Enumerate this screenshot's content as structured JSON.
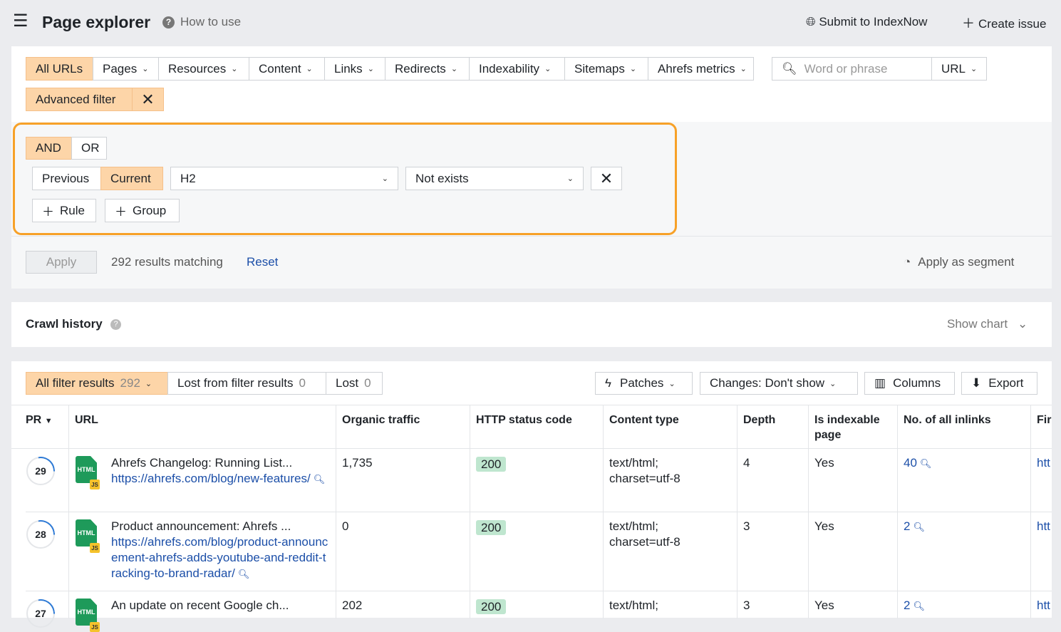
{
  "header": {
    "title": "Page explorer",
    "how_to_use": "How to use",
    "submit": "Submit to IndexNow",
    "create_issue": "Create issue"
  },
  "tabs": [
    {
      "label": "All URLs"
    },
    {
      "label": "Pages"
    },
    {
      "label": "Resources"
    },
    {
      "label": "Content"
    },
    {
      "label": "Links"
    },
    {
      "label": "Redirects"
    },
    {
      "label": "Indexability"
    },
    {
      "label": "Sitemaps"
    },
    {
      "label": "Ahrefs metrics"
    }
  ],
  "search": {
    "placeholder": "Word or phrase",
    "mode": "URL"
  },
  "advanced_filter": "Advanced filter",
  "filter": {
    "and": "AND",
    "or": "OR",
    "previous": "Previous",
    "current": "Current",
    "field": "H2",
    "condition": "Not exists",
    "rule": "Rule",
    "group": "Group"
  },
  "apply": {
    "label": "Apply",
    "results": "292 results matching",
    "reset": "Reset",
    "segment": "Apply as segment"
  },
  "crawl_history": {
    "title": "Crawl history",
    "show_chart": "Show chart"
  },
  "results_tabs": [
    {
      "label": "All filter results",
      "count": "292"
    },
    {
      "label": "Lost from filter results",
      "count": "0"
    },
    {
      "label": "Lost",
      "count": "0"
    }
  ],
  "toolbar": {
    "patches": "Patches",
    "changes": "Changes: Don't show",
    "columns": "Columns",
    "export": "Export"
  },
  "columns": [
    "PR",
    "URL",
    "Organic traffic",
    "HTTP status code",
    "Content type",
    "Depth",
    "Is indexable page",
    "No. of all inlinks",
    "Fir"
  ],
  "rows": [
    {
      "pr": "29",
      "title": "Ahrefs Changelog: Running List...",
      "url": "https://ahrefs.com/blog/new-features/",
      "traffic": "1,735",
      "status": "200",
      "ctype": "text/html; charset=utf-8",
      "depth": "4",
      "indexable": "Yes",
      "inlinks": "40",
      "first": "htt"
    },
    {
      "pr": "28",
      "title": "Product announcement: Ahrefs ...",
      "url": "https://ahrefs.com/blog/product-announcement-ahrefs-adds-youtube-and-reddit-tracking-to-brand-radar/",
      "traffic": "0",
      "status": "200",
      "ctype": "text/html; charset=utf-8",
      "depth": "3",
      "indexable": "Yes",
      "inlinks": "2",
      "first": "htt"
    },
    {
      "pr": "27",
      "title": "An update on recent Google ch...",
      "url": "",
      "traffic": "202",
      "status": "200",
      "ctype": "text/html;",
      "depth": "3",
      "indexable": "Yes",
      "inlinks": "2",
      "first": "htt"
    }
  ],
  "colors": {
    "accent": "#fdd5a8",
    "highlight_border": "#f7a128",
    "link": "#1c4fa8",
    "status_ok": "#bfe6cf"
  }
}
